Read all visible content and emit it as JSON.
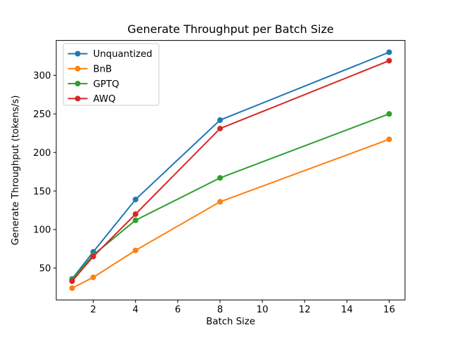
{
  "chart_data": {
    "type": "line",
    "title": "Generate Throughput per Batch Size",
    "xlabel": "Batch Size",
    "ylabel": "Generate Throughput (tokens/s)",
    "x": [
      1,
      2,
      4,
      8,
      16
    ],
    "xticks": [
      2,
      4,
      6,
      8,
      10,
      12,
      14,
      16
    ],
    "yticks": [
      50,
      100,
      150,
      200,
      250,
      300
    ],
    "xlim": [
      0.25,
      16.75
    ],
    "ylim": [
      8.7,
      345.3
    ],
    "grid": false,
    "marker": "circle",
    "legend_position": "upper left",
    "background": "#ffffff",
    "axis_color": "#000000",
    "legend_border_color": "#cccccc",
    "series": [
      {
        "name": "Unquantized",
        "color": "#1f77b4",
        "values": [
          36,
          71,
          139,
          242,
          330
        ]
      },
      {
        "name": "BnB",
        "color": "#ff7f0e",
        "values": [
          24,
          38,
          73,
          136,
          217
        ]
      },
      {
        "name": "GPTQ",
        "color": "#2ca02c",
        "values": [
          35,
          67,
          112,
          167,
          250
        ]
      },
      {
        "name": "AWQ",
        "color": "#d62728",
        "values": [
          33,
          65,
          120,
          231,
          319
        ]
      }
    ]
  }
}
